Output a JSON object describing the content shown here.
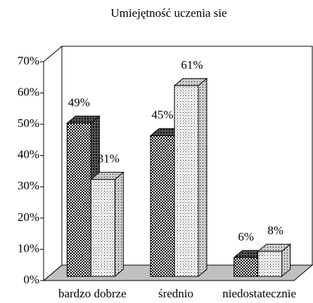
{
  "chart_data": {
    "type": "bar3d",
    "title": "Umiejętność uczenia sie",
    "categories": [
      "bardzo dobrze",
      "średnio",
      "niedostatecznie"
    ],
    "series": [
      {
        "color": "#000000",
        "values": [
          49,
          45,
          6
        ],
        "value_labels": [
          "49%",
          "45%",
          "6%"
        ]
      },
      {
        "color": "#ffffff",
        "values": [
          31,
          61,
          8
        ],
        "value_labels": [
          "31%",
          "61%",
          "8%"
        ]
      }
    ],
    "ylim": [
      0,
      70
    ],
    "yticks": [
      {
        "value": 0,
        "label": "0%"
      },
      {
        "value": 10,
        "label": "10%"
      },
      {
        "value": 20,
        "label": "20%"
      },
      {
        "value": 30,
        "label": "30%"
      },
      {
        "value": 40,
        "label": "40%"
      },
      {
        "value": 50,
        "label": "50%"
      },
      {
        "value": 60,
        "label": "60%"
      },
      {
        "value": 70,
        "label": "70%"
      }
    ]
  }
}
